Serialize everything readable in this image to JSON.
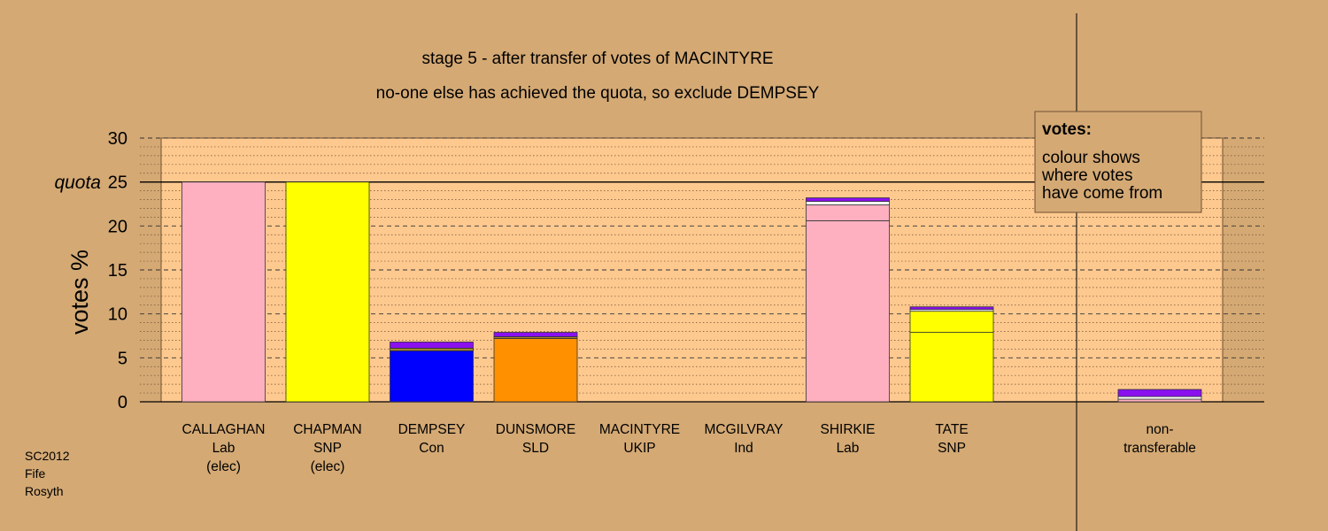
{
  "chart_data": {
    "type": "bar",
    "stacked": true,
    "title": "stage 5 - after transfer of votes of MACINTYRE",
    "subtitle": "no-one else has achieved the quota, so exclude DEMPSEY",
    "ylabel": "votes %",
    "ylim": [
      0,
      30
    ],
    "yticks": [
      "0",
      "5",
      "10",
      "15",
      "20",
      "25",
      "30"
    ],
    "quota_value": 25,
    "quota_label": "quota",
    "grid": true,
    "legend": {
      "position": "top-right",
      "title": "votes:",
      "lines": [
        "colour shows",
        "where votes",
        "have come from"
      ]
    },
    "footer": [
      "SC2012",
      "Fife",
      "Rosyth"
    ],
    "colors": {
      "background": "#d4a974",
      "plot_area": "#fec98f",
      "pink": "#ffb0c0",
      "yellow": "#ffff00",
      "blue": "#0000ff",
      "orange": "#ff9000",
      "purple": "#8a10f0",
      "white": "#ffffff",
      "olive": "#a08030"
    },
    "candidates": [
      {
        "name": "CALLAGHAN",
        "party": "Lab",
        "status": "(elec)",
        "segments": [
          {
            "value": 25.0,
            "color": "#ffb0c0"
          }
        ]
      },
      {
        "name": "CHAPMAN",
        "party": "SNP",
        "status": "(elec)",
        "segments": [
          {
            "value": 25.0,
            "color": "#ffff00"
          }
        ]
      },
      {
        "name": "DEMPSEY",
        "party": "Con",
        "status": "",
        "segments": [
          {
            "value": 5.8,
            "color": "#0000ff"
          },
          {
            "value": 0.3,
            "color": "#a08030"
          },
          {
            "value": 0.7,
            "color": "#8a10f0"
          }
        ]
      },
      {
        "name": "DUNSMORE",
        "party": "SLD",
        "status": "",
        "segments": [
          {
            "value": 7.2,
            "color": "#ff9000"
          },
          {
            "value": 0.2,
            "color": "#a08030"
          },
          {
            "value": 0.5,
            "color": "#8a10f0"
          }
        ]
      },
      {
        "name": "MACINTYRE",
        "party": "UKIP",
        "status": "",
        "segments": []
      },
      {
        "name": "MCGILVRAY",
        "party": "Ind",
        "status": "",
        "segments": []
      },
      {
        "name": "SHIRKIE",
        "party": "Lab",
        "status": "",
        "segments": [
          {
            "value": 20.6,
            "color": "#ffb0c0"
          },
          {
            "value": 1.8,
            "color": "#ffb0c0"
          },
          {
            "value": 0.4,
            "color": "#ffffff"
          },
          {
            "value": 0.4,
            "color": "#8a10f0"
          }
        ]
      },
      {
        "name": "TATE",
        "party": "SNP",
        "status": "",
        "segments": [
          {
            "value": 7.9,
            "color": "#ffff00"
          },
          {
            "value": 2.4,
            "color": "#ffff00"
          },
          {
            "value": 0.2,
            "color": "#ffffff"
          },
          {
            "value": 0.3,
            "color": "#8a10f0"
          }
        ]
      }
    ],
    "nontransferable": {
      "label": [
        "non-",
        "transferable"
      ],
      "segments": [
        {
          "value": 0.3,
          "color": "#ffb0c0"
        },
        {
          "value": 0.3,
          "color": "#ffffff"
        },
        {
          "value": 0.8,
          "color": "#8a10f0"
        }
      ]
    }
  }
}
